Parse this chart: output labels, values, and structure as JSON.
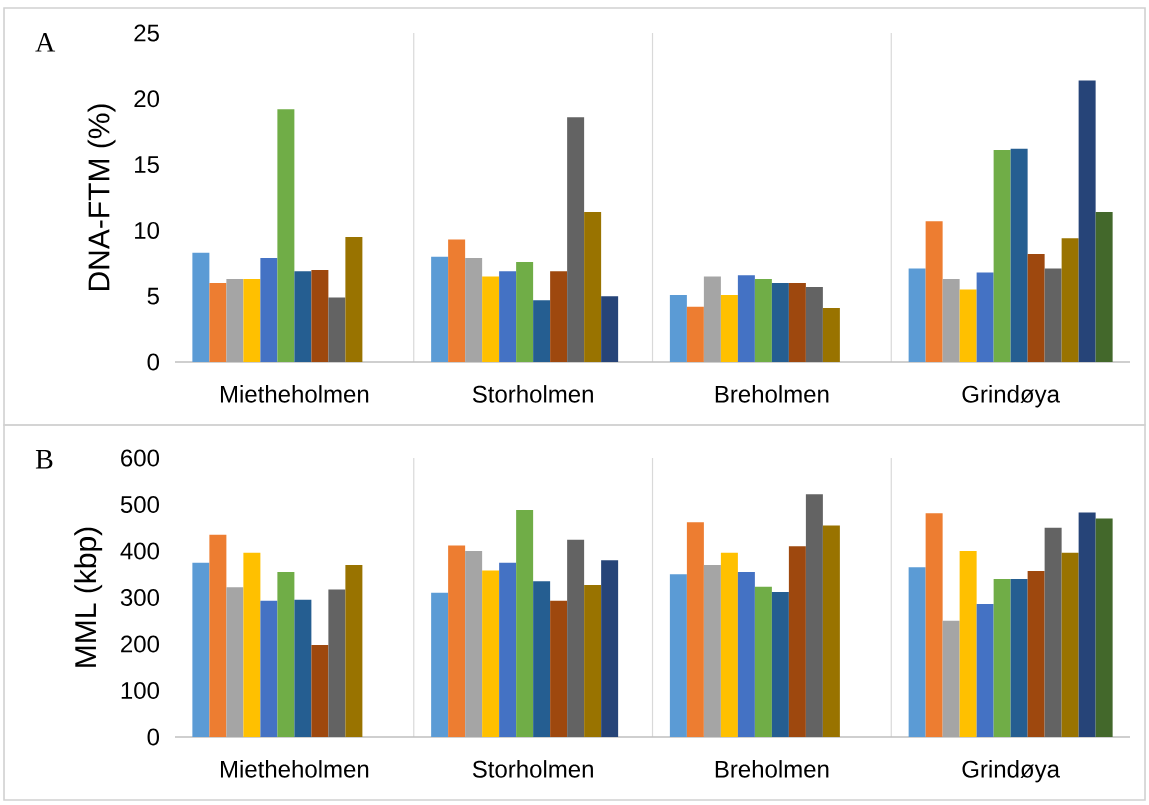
{
  "chart_data": [
    {
      "type": "bar",
      "ylabel": "DNA-FTM (%)",
      "annotations": [
        "A"
      ],
      "grid": "x",
      "categories": [
        "Mietheholmen",
        "Storholmen",
        "Breholmen",
        "Grindøya"
      ],
      "ylim": [
        0,
        25
      ],
      "yticks": [
        0,
        5,
        10,
        15,
        20,
        25
      ],
      "series": [
        {
          "color": "#5b9bd5",
          "values": [
            8.3,
            8.0,
            5.1,
            7.1
          ]
        },
        {
          "color": "#ed7d31",
          "values": [
            6.0,
            9.3,
            4.2,
            10.7
          ]
        },
        {
          "color": "#a5a5a5",
          "values": [
            6.3,
            7.9,
            6.5,
            6.3
          ]
        },
        {
          "color": "#ffc000",
          "values": [
            6.3,
            6.5,
            5.1,
            5.5
          ]
        },
        {
          "color": "#4472c4",
          "values": [
            7.9,
            6.9,
            6.6,
            6.8
          ]
        },
        {
          "color": "#70ad47",
          "values": [
            19.2,
            7.6,
            6.3,
            16.1
          ]
        },
        {
          "color": "#255e91",
          "values": [
            6.9,
            4.7,
            6.0,
            16.2
          ]
        },
        {
          "color": "#9e480e",
          "values": [
            7.0,
            6.9,
            6.0,
            8.2
          ]
        },
        {
          "color": "#636363",
          "values": [
            4.9,
            18.6,
            5.7,
            7.1
          ]
        },
        {
          "color": "#997300",
          "values": [
            9.5,
            11.4,
            4.1,
            9.4
          ]
        },
        {
          "color": "#264478",
          "values": [
            null,
            5.0,
            null,
            21.4
          ]
        },
        {
          "color": "#43682b",
          "values": [
            null,
            null,
            null,
            11.4
          ]
        }
      ]
    },
    {
      "type": "bar",
      "ylabel": "MML (kbp)",
      "annotations": [
        "B"
      ],
      "grid": "x",
      "categories": [
        "Mietheholmen",
        "Storholmen",
        "Breholmen",
        "Grindøya"
      ],
      "ylim": [
        0,
        600
      ],
      "yticks": [
        0,
        100,
        200,
        300,
        400,
        500,
        600
      ],
      "series": [
        {
          "color": "#5b9bd5",
          "values": [
            375,
            310,
            350,
            365
          ]
        },
        {
          "color": "#ed7d31",
          "values": [
            435,
            412,
            462,
            481
          ]
        },
        {
          "color": "#a5a5a5",
          "values": [
            322,
            400,
            370,
            250
          ]
        },
        {
          "color": "#ffc000",
          "values": [
            396,
            358,
            396,
            400
          ]
        },
        {
          "color": "#4472c4",
          "values": [
            293,
            375,
            355,
            286
          ]
        },
        {
          "color": "#70ad47",
          "values": [
            355,
            488,
            323,
            340
          ]
        },
        {
          "color": "#255e91",
          "values": [
            295,
            335,
            312,
            340
          ]
        },
        {
          "color": "#9e480e",
          "values": [
            198,
            293,
            410,
            357
          ]
        },
        {
          "color": "#636363",
          "values": [
            317,
            424,
            522,
            450
          ]
        },
        {
          "color": "#997300",
          "values": [
            370,
            327,
            455,
            396
          ]
        },
        {
          "color": "#264478",
          "values": [
            null,
            380,
            null,
            483
          ]
        },
        {
          "color": "#43682b",
          "values": [
            null,
            null,
            null,
            470
          ]
        }
      ]
    }
  ]
}
